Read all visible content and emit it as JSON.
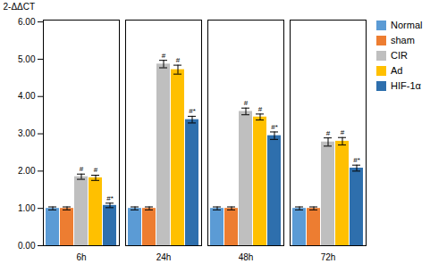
{
  "chart_data": {
    "type": "bar",
    "categories": [
      "6h",
      "24h",
      "48h",
      "72h"
    ],
    "series": [
      {
        "name": "Normal",
        "color": "#5b9bd5",
        "values": [
          1.0,
          1.0,
          1.0,
          1.0
        ],
        "errors": [
          0.04,
          0.04,
          0.04,
          0.04
        ]
      },
      {
        "name": "sham",
        "color": "#ed7d31",
        "values": [
          1.0,
          1.0,
          1.0,
          1.0
        ],
        "errors": [
          0.04,
          0.04,
          0.04,
          0.04
        ]
      },
      {
        "name": "CIR",
        "color": "#bfbfbf",
        "values": [
          1.85,
          4.87,
          3.6,
          2.78
        ],
        "errors": [
          0.07,
          0.1,
          0.09,
          0.11
        ]
      },
      {
        "name": "Ad",
        "color": "#ffc000",
        "values": [
          1.82,
          4.72,
          3.45,
          2.8
        ],
        "errors": [
          0.07,
          0.12,
          0.08,
          0.1
        ]
      },
      {
        "name": "HIF-1α",
        "color": "#2e6fad",
        "values": [
          1.08,
          3.38,
          2.95,
          2.08
        ],
        "errors": [
          0.06,
          0.09,
          0.1,
          0.08
        ]
      }
    ],
    "ylabel": "2-ΔΔCT",
    "ylim": [
      0.0,
      6.05
    ],
    "yticks": [
      {
        "value": 0.0,
        "label": "0.00"
      },
      {
        "value": 1.0,
        "label": "1.00"
      },
      {
        "value": 2.0,
        "label": "2.00"
      },
      {
        "value": 3.0,
        "label": "3.00"
      },
      {
        "value": 4.0,
        "label": "4.00"
      },
      {
        "value": 5.0,
        "label": "5.00"
      },
      {
        "value": 6.0,
        "label": "6.00"
      }
    ],
    "grid": false,
    "legend": "right",
    "annotations": [
      {
        "category": "6h",
        "series": "CIR",
        "text": "#"
      },
      {
        "category": "6h",
        "series": "Ad",
        "text": "#"
      },
      {
        "category": "6h",
        "series": "HIF-1α",
        "text": "#*"
      },
      {
        "category": "24h",
        "series": "CIR",
        "text": "#"
      },
      {
        "category": "24h",
        "series": "Ad",
        "text": "#"
      },
      {
        "category": "24h",
        "series": "HIF-1α",
        "text": "#*"
      },
      {
        "category": "48h",
        "series": "CIR",
        "text": "#"
      },
      {
        "category": "48h",
        "series": "Ad",
        "text": "#"
      },
      {
        "category": "48h",
        "series": "HIF-1α",
        "text": "#*"
      },
      {
        "category": "72h",
        "series": "CIR",
        "text": "#"
      },
      {
        "category": "72h",
        "series": "Ad",
        "text": "#"
      },
      {
        "category": "72h",
        "series": "HIF-1α",
        "text": "#*"
      }
    ]
  }
}
